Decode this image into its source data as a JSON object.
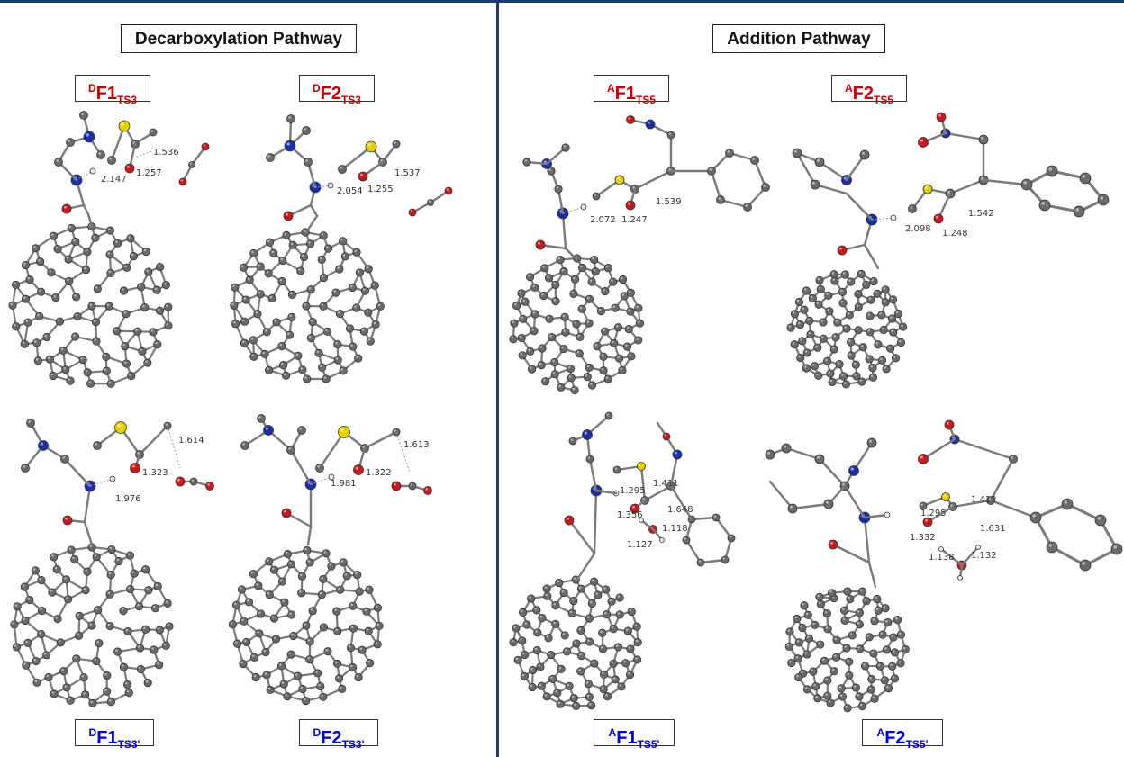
{
  "colors": {
    "frame_blue": "#1f3a6b",
    "title_red": "#c00000",
    "title_blue": "#0000cc",
    "carbon": "#6a6a6a",
    "nitrogen": "#1a2ea8",
    "oxygen": "#c8191e",
    "sulfur": "#e3d000",
    "hydrogen": "#e6e6e6"
  },
  "panels": {
    "left_title": "Decarboxylation Pathway",
    "right_title": "Addition Pathway"
  },
  "structures": [
    {
      "id": "DF1_TS3",
      "sup": "D",
      "main": "F1",
      "sub": "TS3",
      "color": "red",
      "distances": [
        "1.536",
        "2.147",
        "1.257"
      ]
    },
    {
      "id": "DF2_TS3",
      "sup": "D",
      "main": "F2",
      "sub": "TS3",
      "color": "red",
      "distances": [
        "1.537",
        "2.054",
        "1.255"
      ]
    },
    {
      "id": "AF1_TS5",
      "sup": "A",
      "main": "F1",
      "sub": "TS5",
      "color": "red",
      "distances": [
        "2.072",
        "1.247",
        "1.539"
      ]
    },
    {
      "id": "AF2_TS5",
      "sup": "A",
      "main": "F2",
      "sub": "TS5",
      "color": "red",
      "distances": [
        "1.542",
        "2.098",
        "1.248"
      ]
    },
    {
      "id": "DF1_TS3p",
      "sup": "D",
      "main": "F1",
      "sub": "TS3'",
      "color": "blue",
      "distances": [
        "1.614",
        "1.323",
        "1.976"
      ]
    },
    {
      "id": "DF2_TS3p",
      "sup": "D",
      "main": "F2",
      "sub": "TS3'",
      "color": "blue",
      "distances": [
        "1.613",
        "1.322",
        "1.981"
      ]
    },
    {
      "id": "AF1_TS5p",
      "sup": "A",
      "main": "F1",
      "sub": "TS5'",
      "color": "blue",
      "distances": [
        "1.411",
        "1.295",
        "1.648",
        "1.356",
        "1.118",
        "1.127"
      ]
    },
    {
      "id": "AF2_TS5p",
      "sup": "A",
      "main": "F2",
      "sub": "TS5'",
      "color": "blue",
      "distances": [
        "1.412",
        "1.295",
        "1.631",
        "1.332",
        "1.138",
        "1.132"
      ]
    }
  ]
}
